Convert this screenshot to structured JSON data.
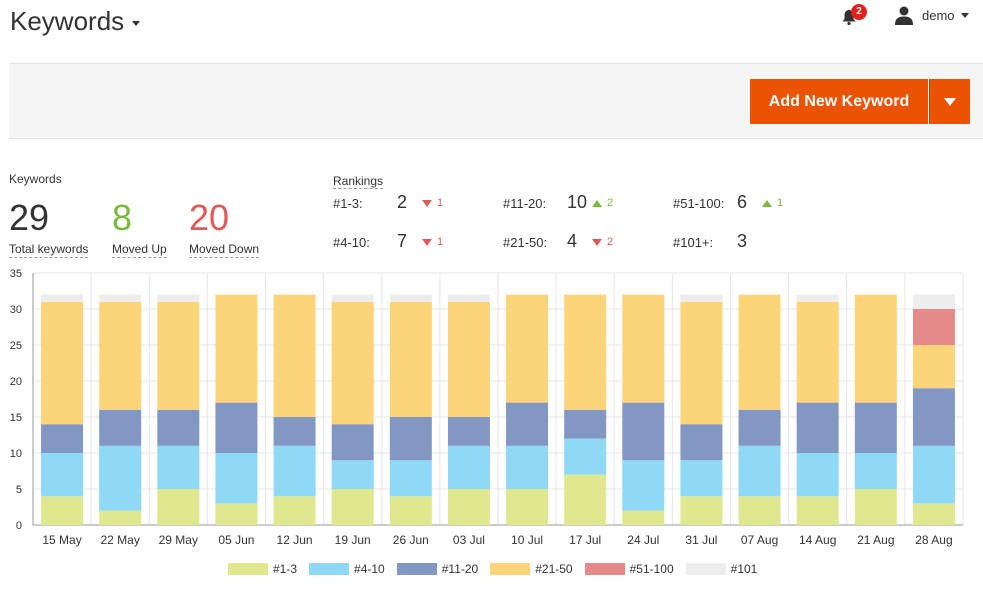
{
  "header": {
    "title": "Keywords",
    "notifications_count": "2",
    "user_name": "demo"
  },
  "toolbar": {
    "add_label": "Add New Keyword"
  },
  "stats": {
    "section_label": "Keywords",
    "total": "29",
    "total_label": "Total keywords",
    "moved_up": "8",
    "moved_up_label": "Moved Up",
    "moved_down": "20",
    "moved_down_label": "Moved Down",
    "colors": {
      "up": "#79b93c",
      "down": "#e05a5a",
      "neutral": "#333333"
    }
  },
  "rankings": {
    "label": "Rankings",
    "items": [
      {
        "label": "#1-3:",
        "value": "2",
        "change": "1",
        "dir": "down"
      },
      {
        "label": "#11-20:",
        "value": "10",
        "change": "2",
        "dir": "up"
      },
      {
        "label": "#51-100:",
        "value": "6",
        "change": "1",
        "dir": "up"
      },
      {
        "label": "#4-10:",
        "value": "7",
        "change": "1",
        "dir": "down"
      },
      {
        "label": "#21-50:",
        "value": "4",
        "change": "2",
        "dir": "down"
      },
      {
        "label": "#101+:",
        "value": "3",
        "change": "",
        "dir": ""
      }
    ]
  },
  "chart_data": {
    "type": "bar",
    "stacked": true,
    "categories": [
      "15 May",
      "22 May",
      "29 May",
      "05 Jun",
      "12 Jun",
      "19 Jun",
      "26 Jun",
      "03 Jul",
      "10 Jul",
      "17 Jul",
      "24 Jul",
      "31 Jul",
      "07 Aug",
      "14 Aug",
      "21 Aug",
      "28 Aug"
    ],
    "series": [
      {
        "name": "#1-3",
        "color": "#dfe88f",
        "values": [
          4,
          2,
          5,
          3,
          4,
          5,
          4,
          5,
          5,
          7,
          2,
          4,
          4,
          4,
          5,
          3
        ]
      },
      {
        "name": "#4-10",
        "color": "#8fd8f6",
        "values": [
          6,
          9,
          6,
          7,
          7,
          4,
          5,
          6,
          6,
          5,
          7,
          5,
          7,
          6,
          5,
          8
        ]
      },
      {
        "name": "#11-20",
        "color": "#8297c2",
        "values": [
          4,
          5,
          5,
          7,
          4,
          5,
          6,
          4,
          6,
          4,
          8,
          5,
          5,
          7,
          7,
          8
        ]
      },
      {
        "name": "#21-50",
        "color": "#fcd47a",
        "values": [
          17,
          15,
          15,
          15,
          17,
          17,
          16,
          16,
          15,
          16,
          15,
          17,
          16,
          14,
          15,
          6
        ]
      },
      {
        "name": "#51-100",
        "color": "#e58a8a",
        "values": [
          0,
          0,
          0,
          0,
          0,
          0,
          0,
          0,
          0,
          0,
          0,
          0,
          0,
          0,
          0,
          5
        ]
      },
      {
        "name": "#101",
        "color": "#ededed",
        "values": [
          1,
          1,
          1,
          0,
          0,
          1,
          1,
          1,
          0,
          0,
          0,
          1,
          0,
          1,
          0,
          2
        ]
      }
    ],
    "ylim": [
      0,
      35
    ],
    "yticks": [
      0,
      5,
      10,
      15,
      20,
      25,
      30,
      35
    ],
    "grid": true,
    "legend": "bottom"
  }
}
